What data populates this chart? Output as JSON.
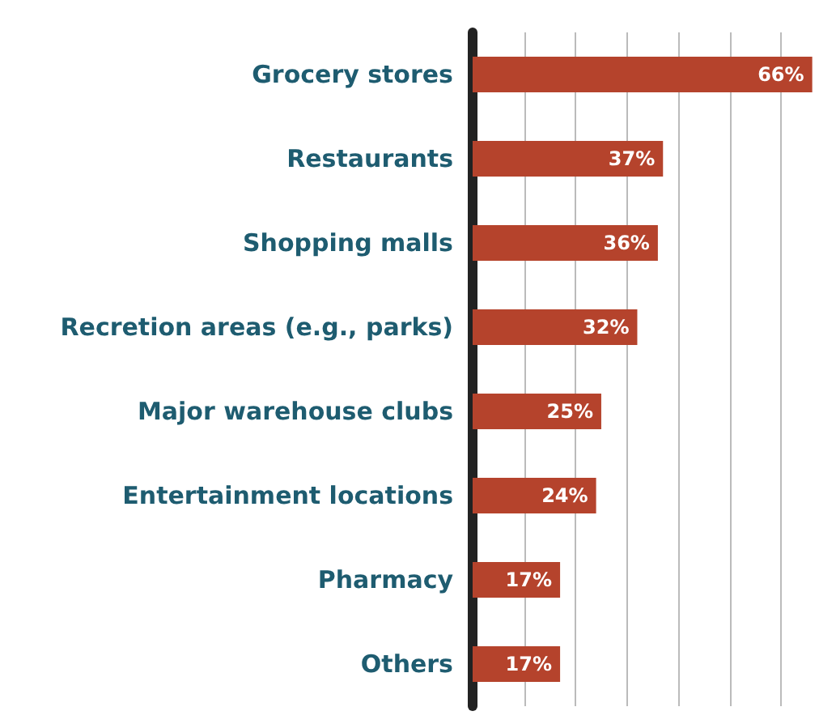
{
  "chart_data": {
    "type": "bar",
    "orientation": "horizontal",
    "categories": [
      "Grocery stores",
      "Restaurants",
      "Shopping malls",
      "Recretion areas (e.g., parks)",
      "Major warehouse clubs",
      "Entertainment locations",
      "Pharmacy",
      "Others"
    ],
    "values": [
      66,
      37,
      36,
      32,
      25,
      24,
      17,
      17
    ],
    "value_labels": [
      "66%",
      "37%",
      "36%",
      "32%",
      "25%",
      "24%",
      "17%",
      "17%"
    ],
    "color": "#b5432c",
    "xlim": [
      0,
      67
    ],
    "xticks": [
      {
        "value": 0,
        "label": null
      },
      {
        "value": 10,
        "label": null
      },
      {
        "value": 20,
        "label": null
      },
      {
        "value": 30,
        "label": null
      },
      {
        "value": 40,
        "label": null
      },
      {
        "value": 50,
        "label": null
      },
      {
        "value": 60,
        "label": null
      }
    ],
    "grid": "x",
    "tick_labels": "y"
  }
}
